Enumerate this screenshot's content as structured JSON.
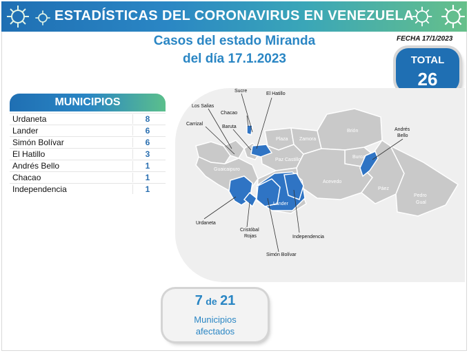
{
  "banner": {
    "title": "ESTADÍSTICAS DEL CORONAVIRUS EN VENEZUELA"
  },
  "headline": {
    "line1": "Casos del estado Miranda",
    "line2": "del día 17.1.2023"
  },
  "fecha": "FECHA 17/1/2023",
  "total": {
    "label": "TOTAL",
    "value": "26"
  },
  "municipios": {
    "header": "MUNICIPIOS",
    "rows": [
      {
        "name": "Urdaneta",
        "value": "8"
      },
      {
        "name": "Lander",
        "value": "6"
      },
      {
        "name": "Simón Bolívar",
        "value": "6"
      },
      {
        "name": "El Hatillo",
        "value": "3"
      },
      {
        "name": "Andrés Bello",
        "value": "1"
      },
      {
        "name": "Chacao",
        "value": "1"
      },
      {
        "name": "Independencia",
        "value": "1"
      }
    ]
  },
  "map": {
    "region_labels": {
      "brion": "Brión",
      "plaza": "Plaza",
      "zamora": "Zamora",
      "buroz": "Buroz",
      "paz_castillo": "Paz Castillo",
      "guaicaipuro": "Guaicaipuro",
      "acevedo": "Acevedo",
      "paez": "Páez",
      "pedro_gual_1": "Pedro",
      "pedro_gual_2": "Gual",
      "lander": "Lander"
    },
    "callouts": {
      "sucre": "Sucre",
      "el_hatillo": "El Hatillo",
      "los_salias": "Los Salias",
      "chacao": "Chacao",
      "carrizal": "Carrizal",
      "baruta": "Baruta",
      "andres_bello_1": "Andrés",
      "andres_bello_2": "Bello",
      "urdaneta": "Urdaneta",
      "cristobal_rojas_1": "Cristóbal",
      "cristobal_rojas_2": "Rojas",
      "simon_bolivar": "Simón Bolívar",
      "independencia": "Independencia"
    },
    "colors": {
      "affected": "#2f74c4",
      "unaffected": "#c9c9c9",
      "border": "#ffffff"
    }
  },
  "afectados": {
    "count": "7",
    "connector": "de",
    "total": "21",
    "line1": "Municipios",
    "line2": "afectados"
  }
}
